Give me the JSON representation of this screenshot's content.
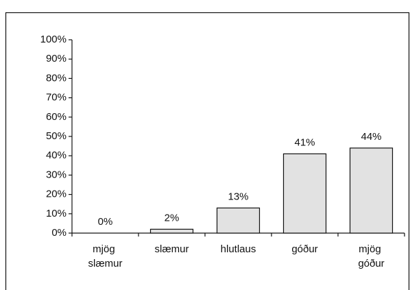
{
  "chart_data": {
    "type": "bar",
    "categories": [
      "mjög slæmur",
      "slæmur",
      "hlutlaus",
      "góður",
      "mjög góður"
    ],
    "values": [
      0,
      2,
      13,
      41,
      44
    ],
    "value_labels": [
      "0%",
      "2%",
      "13%",
      "41%",
      "44%"
    ],
    "color": "#e2e2e2",
    "ylim": [
      0,
      100
    ],
    "yticks": [
      {
        "value": 0,
        "label": "0%"
      },
      {
        "value": 10,
        "label": "10%"
      },
      {
        "value": 20,
        "label": "20%"
      },
      {
        "value": 30,
        "label": "30%"
      },
      {
        "value": 40,
        "label": "40%"
      },
      {
        "value": 50,
        "label": "50%"
      },
      {
        "value": 60,
        "label": "60%"
      },
      {
        "value": 70,
        "label": "70%"
      },
      {
        "value": 80,
        "label": "80%"
      },
      {
        "value": 90,
        "label": "90%"
      },
      {
        "value": 100,
        "label": "100%"
      }
    ],
    "grid": false
  }
}
